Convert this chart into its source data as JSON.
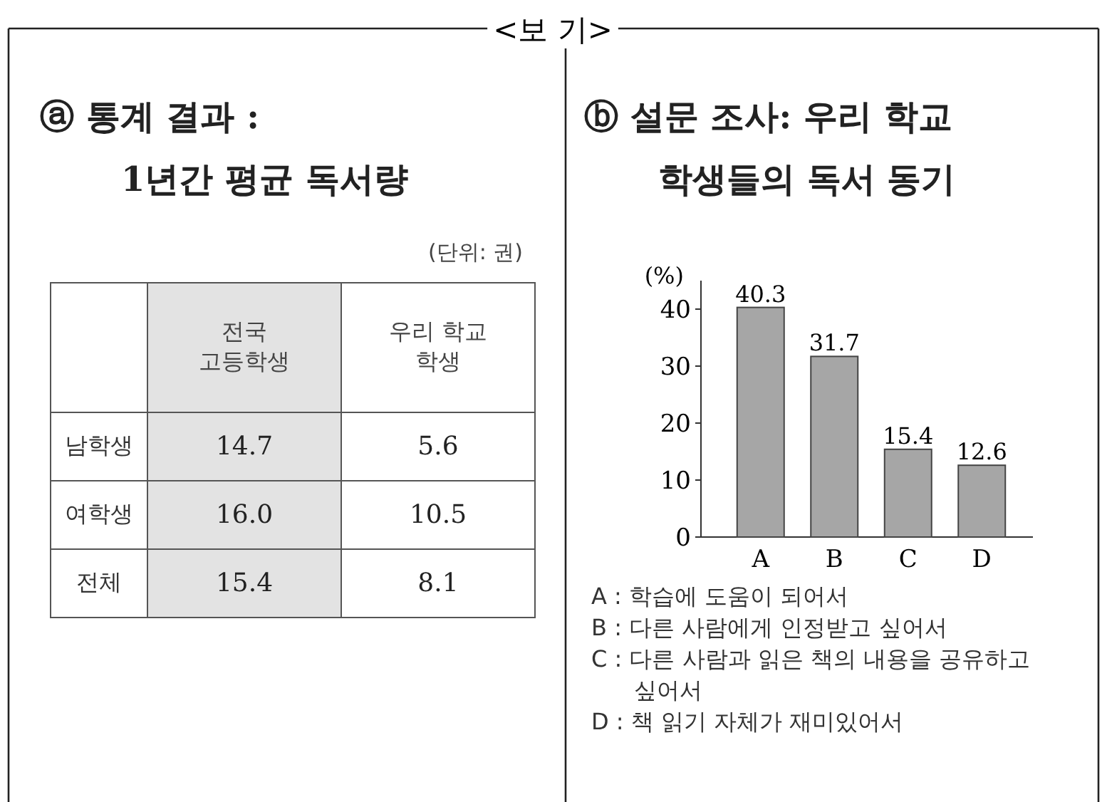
{
  "chart_data": [
    {
      "type": "other",
      "title": "<보 기>"
    },
    {
      "type": "heatmap",
      "title": "ⓐ 통계 결과 :",
      "subtitle": "1년간 평균 독서량",
      "categories": [
        "전국 고등학생",
        "우리 학교 학생"
      ],
      "y_categories": [
        "남학생",
        "여학생",
        "전체"
      ],
      "cells": [
        [
          14.7,
          5.6
        ],
        [
          16.0,
          10.5
        ],
        [
          15.4,
          8.1
        ]
      ],
      "cell_labels": [
        [
          "14.7",
          "5.6"
        ],
        [
          "16.0",
          "10.5"
        ],
        [
          "15.4",
          "8.1"
        ]
      ],
      "colors": [
        "#e3e3e3",
        "#ffffff"
      ],
      "data_labels": true,
      "annotations": [
        "(단위: 권)"
      ]
    },
    {
      "type": "bar",
      "title": "ⓑ 설문 조사: 우리 학교",
      "subtitle": "학생들의 독서 동기",
      "ylabel": "(%)",
      "categories": [
        "A",
        "B",
        "C",
        "D"
      ],
      "values": [
        40.3,
        31.7,
        15.4,
        12.6
      ],
      "color": "#a6a6a6",
      "ylim": [
        0,
        45
      ],
      "yticks": [
        0,
        10,
        20,
        30,
        40
      ],
      "data_labels": true,
      "annotations": [
        "A : 학습에 도움이 되어서",
        "B : 다른 사람에게 인정받고 싶어서",
        "C : 다른 사람과 읽은 책의 내용을 공유하고 싶어서",
        "D : 책 읽기 자체가 재미있어서"
      ]
    }
  ]
}
